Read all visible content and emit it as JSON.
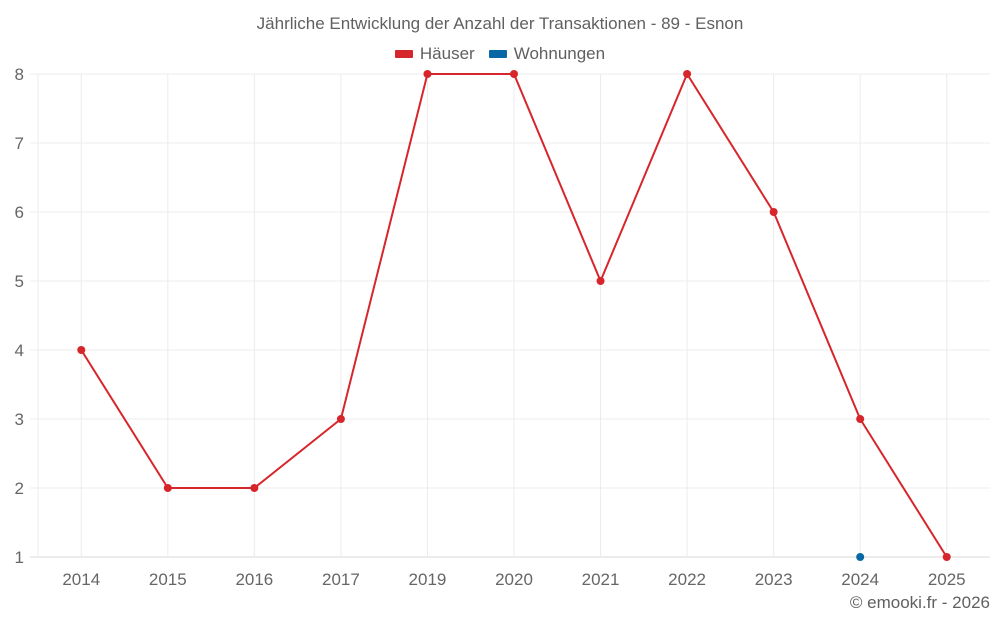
{
  "chart_data": {
    "type": "line",
    "title": "Jährliche Entwicklung der Anzahl der Transaktionen - 89 - Esnon",
    "xlabel": "",
    "ylabel": "",
    "categories": [
      "2014",
      "2015",
      "2016",
      "2017",
      "2019",
      "2020",
      "2021",
      "2022",
      "2023",
      "2024",
      "2025"
    ],
    "series": [
      {
        "name": "Häuser",
        "color": "#d7262b",
        "values": [
          4,
          2,
          2,
          3,
          8,
          8,
          5,
          8,
          6,
          3,
          1
        ]
      },
      {
        "name": "Wohnungen",
        "color": "#0868a6",
        "values": [
          null,
          null,
          null,
          null,
          null,
          null,
          null,
          null,
          null,
          1,
          null
        ]
      }
    ],
    "ylim": [
      1,
      8
    ],
    "yticks": [
      1,
      2,
      3,
      4,
      5,
      6,
      7,
      8
    ],
    "grid": true,
    "legend_position": "top"
  },
  "legend": [
    {
      "label": "Häuser",
      "color": "#d7262b"
    },
    {
      "label": "Wohnungen",
      "color": "#0868a6"
    }
  ],
  "credit": "© emooki.fr - 2026"
}
